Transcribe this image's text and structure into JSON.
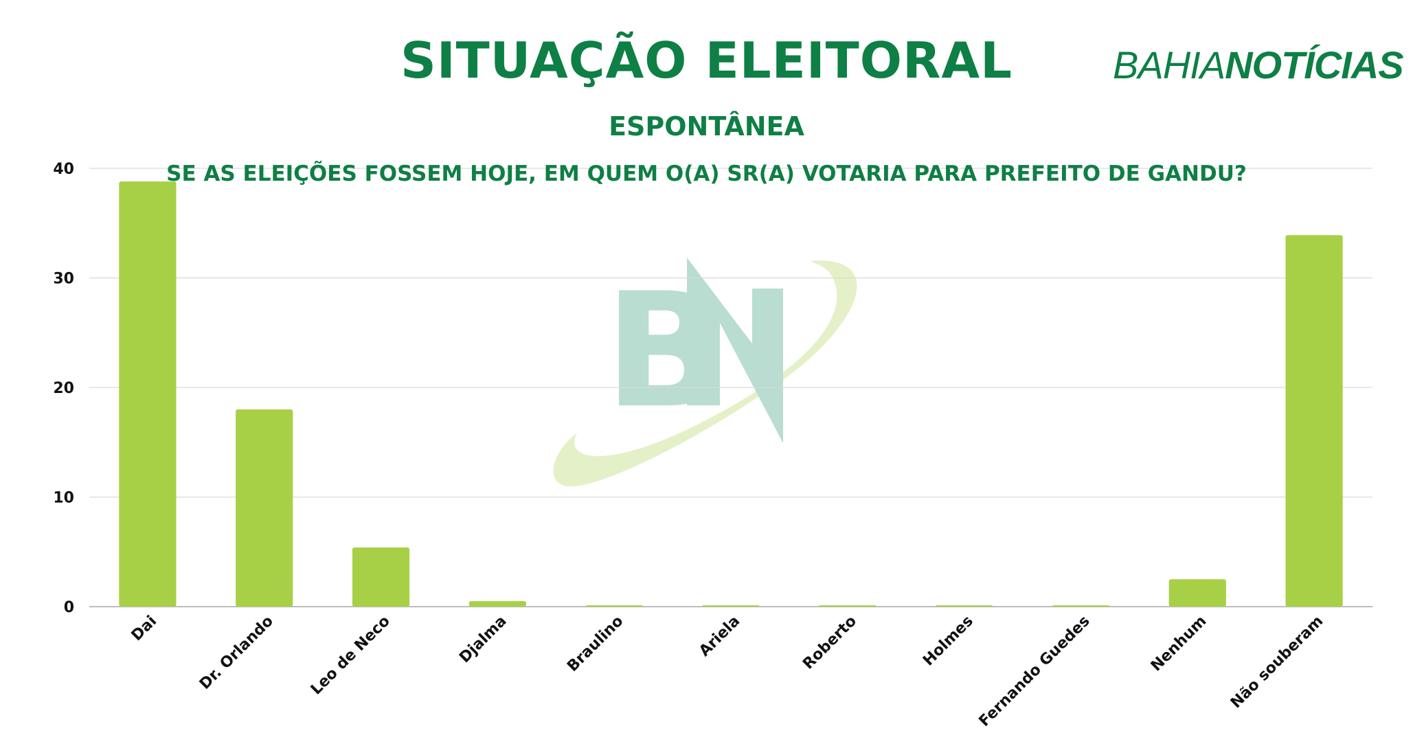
{
  "header": {
    "title": "SITUAÇÃO ELEITORAL",
    "subtitle": "ESPONTÂNEA",
    "question": "SE AS ELEIÇÕES FOSSEM HOJE, EM QUEM O(A) SR(A) VOTARIA PARA PREFEITO DE GANDU?"
  },
  "brand": {
    "light": "BAHIA",
    "bold": "NOTÍCIAS",
    "watermark_letters": "BN"
  },
  "colors": {
    "accent": "#0e7f45",
    "bar": "#a8d046",
    "grid": "#d9d9d9",
    "watermark_green": "#b9ddd0",
    "watermark_swoosh": "#e4f1c8"
  },
  "chart_data": {
    "type": "bar",
    "title": "SITUAÇÃO ELEITORAL",
    "xlabel": "",
    "ylabel": "",
    "ylim": [
      0,
      40
    ],
    "yticks": [
      0,
      10,
      20,
      30,
      40
    ],
    "grid": true,
    "categories": [
      "Dai",
      "Dr. Orlando",
      "Leo de Neco",
      "Djalma",
      "Braulino",
      "Ariela",
      "Roberto",
      "Holmes",
      "Fernando Guedes",
      "Nenhum",
      "Não souberam"
    ],
    "values": [
      38.8,
      18.0,
      5.4,
      0.5,
      0.1,
      0.1,
      0.1,
      0.1,
      0.1,
      2.5,
      33.9
    ]
  }
}
